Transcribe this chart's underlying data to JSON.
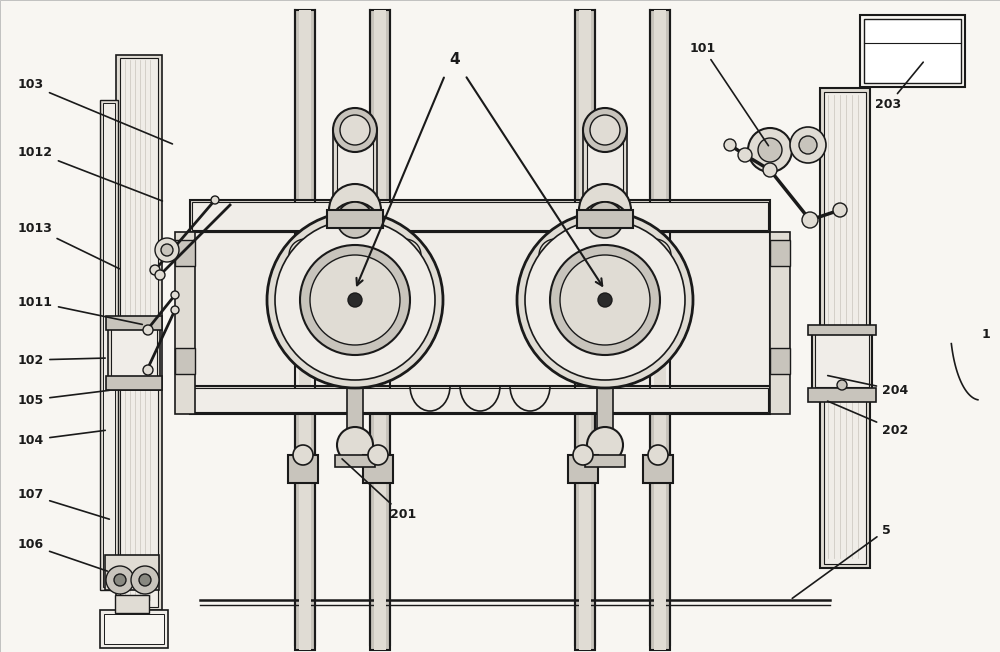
{
  "figsize": [
    10.0,
    6.52
  ],
  "dpi": 100,
  "bg_color": "#ffffff",
  "line_color": "#1a1a1a",
  "fill_light": "#f0ede8",
  "fill_mid": "#e0dcd4",
  "fill_dark": "#c8c4bc",
  "fill_darker": "#b0aca4"
}
